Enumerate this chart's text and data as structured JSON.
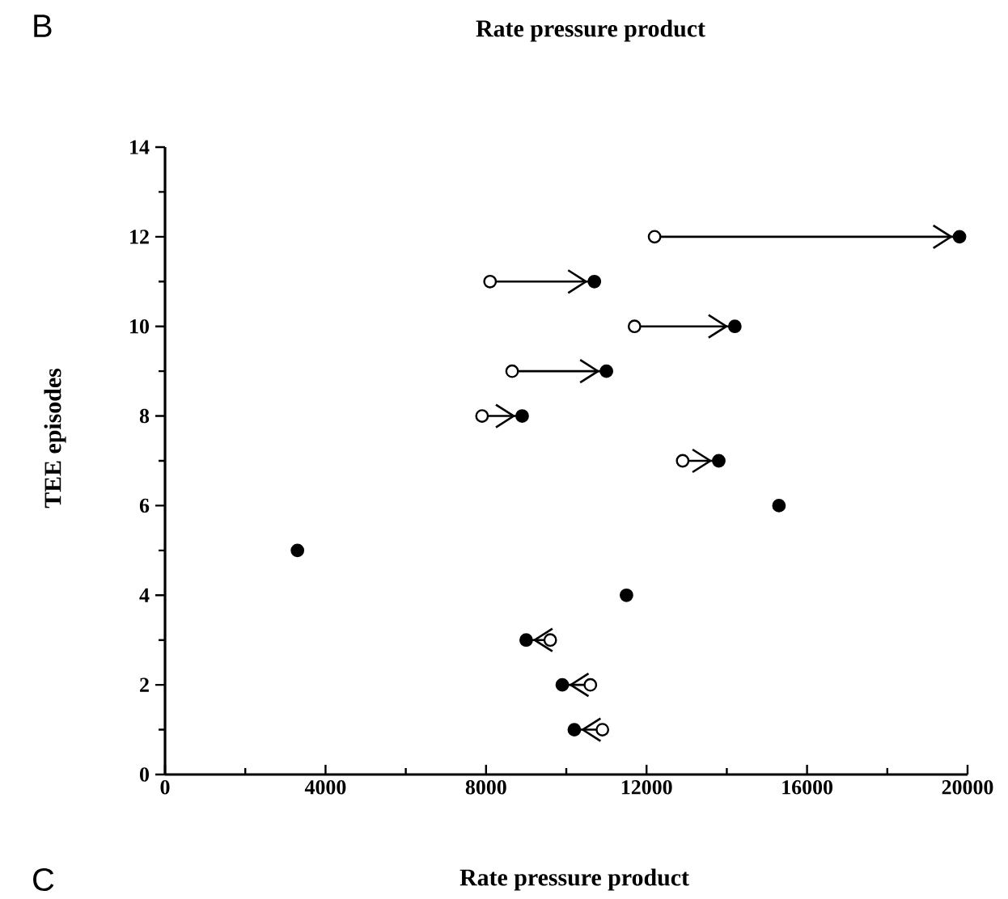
{
  "chart_data": {
    "type": "scatter",
    "title": "Rate pressure product",
    "ylabel": "TEE episodes",
    "annotations": [
      "B",
      "C",
      "Rate pressure product"
    ],
    "xlim": [
      0,
      20000
    ],
    "xticks": [
      0,
      4000,
      8000,
      12000,
      16000,
      20000
    ],
    "ylim": [
      0,
      14
    ],
    "yticks": [
      0,
      2,
      4,
      6,
      8,
      10,
      12,
      14
    ],
    "series": [
      {
        "type": "line",
        "color": "#000000",
        "x": [
          12200,
          19800
        ],
        "values": [
          12,
          12
        ]
      },
      {
        "type": "line",
        "color": "#000000",
        "x": [
          8100,
          10700
        ],
        "values": [
          11,
          11
        ]
      },
      {
        "type": "line",
        "color": "#000000",
        "x": [
          11700,
          14200
        ],
        "values": [
          10,
          10
        ]
      },
      {
        "type": "line",
        "color": "#000000",
        "x": [
          8650,
          11000
        ],
        "values": [
          9,
          9
        ]
      },
      {
        "type": "line",
        "color": "#000000",
        "x": [
          7900,
          8900
        ],
        "values": [
          8,
          8
        ]
      },
      {
        "type": "line",
        "color": "#000000",
        "x": [
          12900,
          13800
        ],
        "values": [
          7,
          7
        ]
      },
      {
        "type": "line",
        "color": "#000000",
        "x": [
          9600,
          9000
        ],
        "values": [
          3,
          3
        ]
      },
      {
        "type": "line",
        "color": "#000000",
        "x": [
          10600,
          9900
        ],
        "values": [
          2,
          2
        ]
      },
      {
        "type": "line",
        "color": "#000000",
        "x": [
          10900,
          10200
        ],
        "values": [
          1,
          1
        ]
      },
      {
        "marker": "circle",
        "color": "#ffffff",
        "x": [
          12200,
          8100,
          11700,
          8650,
          7900,
          12900,
          9600,
          10600,
          10900
        ],
        "values": [
          12,
          11,
          10,
          9,
          8,
          7,
          3,
          2,
          1
        ]
      },
      {
        "marker": "circle",
        "color": "#000000",
        "x": [
          10200,
          9900,
          9000,
          11500,
          3300,
          15300,
          13800,
          8900,
          11000,
          14200,
          10700,
          19800
        ],
        "values": [
          1,
          2,
          3,
          4,
          5,
          6,
          7,
          8,
          9,
          10,
          11,
          12
        ]
      }
    ]
  }
}
